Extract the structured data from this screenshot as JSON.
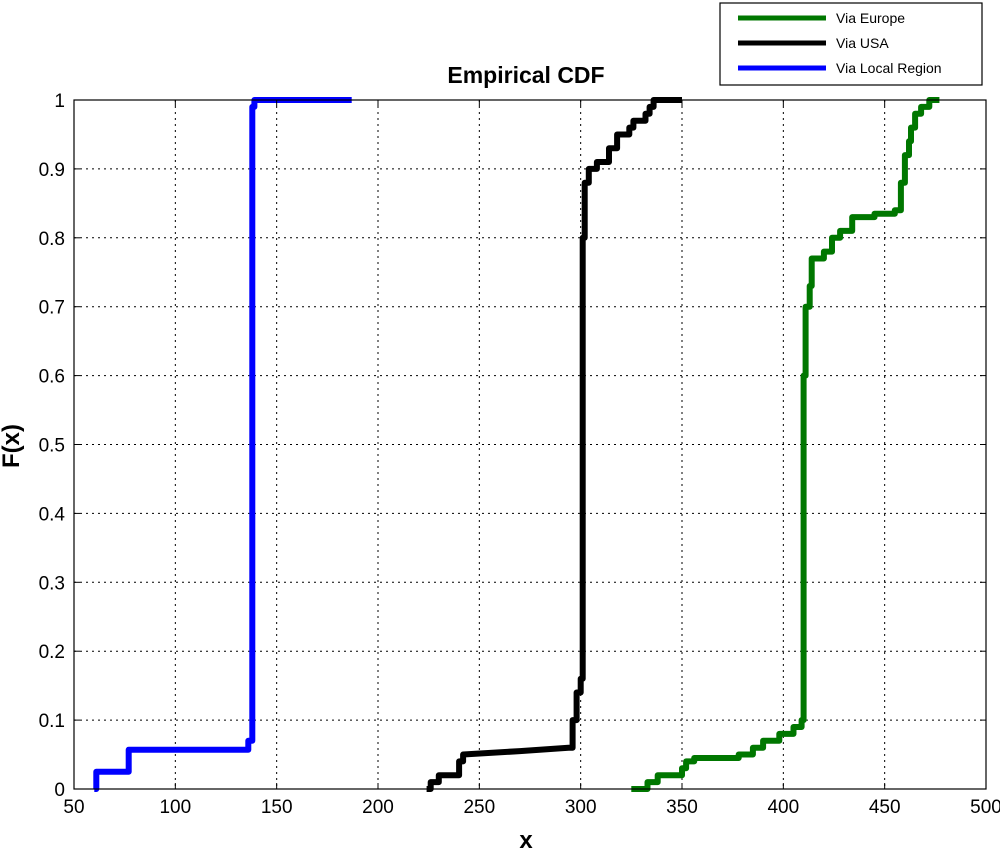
{
  "chart_data": {
    "type": "line",
    "title": "Empirical CDF",
    "xlabel": "x",
    "ylabel": "F(x)",
    "xlim": [
      50,
      500
    ],
    "ylim": [
      0,
      1
    ],
    "xticks": [
      50,
      100,
      150,
      200,
      250,
      300,
      350,
      400,
      450,
      500
    ],
    "yticks": [
      0,
      0.1,
      0.2,
      0.3,
      0.4,
      0.5,
      0.6,
      0.7,
      0.8,
      0.9,
      1
    ],
    "ytick_labels": [
      "0",
      "0.1",
      "0.2",
      "0.3",
      "0.4",
      "0.5",
      "0.6",
      "0.7",
      "0.8",
      "0.9",
      "1"
    ],
    "grid": true,
    "legend_position": "top-right (outside plot)",
    "series": [
      {
        "name": "Via Europe",
        "color": "#007700",
        "points": [
          [
            325,
            0
          ],
          [
            333,
            0
          ],
          [
            333,
            0.01
          ],
          [
            338,
            0.01
          ],
          [
            338,
            0.02
          ],
          [
            350,
            0.02
          ],
          [
            350,
            0.03
          ],
          [
            352,
            0.03
          ],
          [
            352,
            0.04
          ],
          [
            356,
            0.04
          ],
          [
            356,
            0.045
          ],
          [
            378,
            0.045
          ],
          [
            378,
            0.05
          ],
          [
            385,
            0.05
          ],
          [
            385,
            0.06
          ],
          [
            390,
            0.06
          ],
          [
            390,
            0.07
          ],
          [
            398,
            0.07
          ],
          [
            398,
            0.08
          ],
          [
            405,
            0.08
          ],
          [
            405,
            0.09
          ],
          [
            409,
            0.09
          ],
          [
            409,
            0.1
          ],
          [
            410,
            0.1
          ],
          [
            410,
            0.6
          ],
          [
            411,
            0.6
          ],
          [
            411,
            0.7
          ],
          [
            413,
            0.7
          ],
          [
            413,
            0.73
          ],
          [
            414,
            0.73
          ],
          [
            414,
            0.77
          ],
          [
            420,
            0.77
          ],
          [
            420,
            0.78
          ],
          [
            424,
            0.78
          ],
          [
            424,
            0.8
          ],
          [
            428,
            0.8
          ],
          [
            428,
            0.81
          ],
          [
            434,
            0.81
          ],
          [
            434,
            0.83
          ],
          [
            445,
            0.83
          ],
          [
            445,
            0.835
          ],
          [
            455,
            0.835
          ],
          [
            455,
            0.84
          ],
          [
            458,
            0.84
          ],
          [
            458,
            0.88
          ],
          [
            460,
            0.88
          ],
          [
            460,
            0.92
          ],
          [
            462,
            0.92
          ],
          [
            462,
            0.94
          ],
          [
            463,
            0.94
          ],
          [
            463,
            0.96
          ],
          [
            465,
            0.96
          ],
          [
            465,
            0.98
          ],
          [
            468,
            0.98
          ],
          [
            468,
            0.99
          ],
          [
            472,
            0.99
          ],
          [
            472,
            1
          ],
          [
            477,
            1
          ]
        ]
      },
      {
        "name": "Via USA",
        "color": "#000000",
        "points": [
          [
            224,
            0
          ],
          [
            226,
            0
          ],
          [
            226,
            0.01
          ],
          [
            230,
            0.01
          ],
          [
            230,
            0.02
          ],
          [
            240,
            0.02
          ],
          [
            240,
            0.04
          ],
          [
            242,
            0.04
          ],
          [
            242,
            0.05
          ],
          [
            270,
            0.055
          ],
          [
            294,
            0.06
          ],
          [
            296,
            0.06
          ],
          [
            296,
            0.1
          ],
          [
            298,
            0.1
          ],
          [
            298,
            0.14
          ],
          [
            300,
            0.14
          ],
          [
            300,
            0.16
          ],
          [
            301,
            0.16
          ],
          [
            301,
            0.8
          ],
          [
            302,
            0.8
          ],
          [
            302,
            0.88
          ],
          [
            304,
            0.88
          ],
          [
            304,
            0.9
          ],
          [
            308,
            0.9
          ],
          [
            308,
            0.91
          ],
          [
            314,
            0.91
          ],
          [
            314,
            0.93
          ],
          [
            318,
            0.93
          ],
          [
            318,
            0.95
          ],
          [
            324,
            0.95
          ],
          [
            324,
            0.96
          ],
          [
            326,
            0.96
          ],
          [
            326,
            0.97
          ],
          [
            332,
            0.97
          ],
          [
            332,
            0.98
          ],
          [
            334,
            0.98
          ],
          [
            334,
            0.99
          ],
          [
            336,
            0.99
          ],
          [
            336,
            1
          ],
          [
            350,
            1
          ]
        ]
      },
      {
        "name": "Via Local Region",
        "color": "#0000ff",
        "points": [
          [
            60,
            0
          ],
          [
            61,
            0
          ],
          [
            61,
            0.025
          ],
          [
            77,
            0.025
          ],
          [
            77,
            0.057
          ],
          [
            136,
            0.057
          ],
          [
            136,
            0.07
          ],
          [
            138,
            0.07
          ],
          [
            138,
            0.99
          ],
          [
            139,
            0.99
          ],
          [
            139,
            1
          ],
          [
            187,
            1
          ]
        ]
      }
    ]
  }
}
